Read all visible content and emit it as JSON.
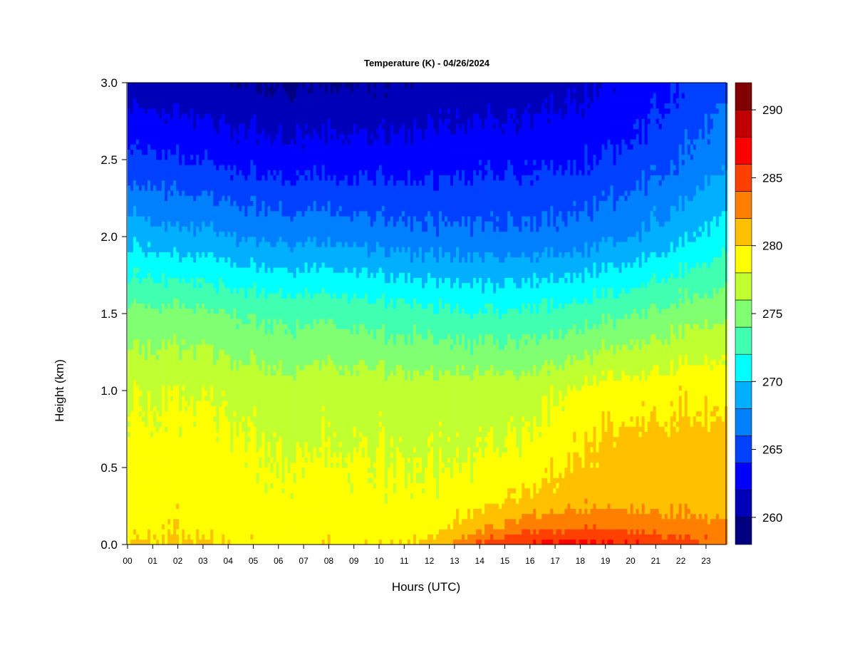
{
  "chart_data": {
    "type": "heatmap",
    "title": "Temperature (K) - 04/26/2024",
    "xlabel": "Hours (UTC)",
    "ylabel": "Height (km)",
    "x_ticks": [
      "00",
      "01",
      "02",
      "03",
      "04",
      "05",
      "06",
      "07",
      "08",
      "09",
      "10",
      "11",
      "12",
      "13",
      "14",
      "15",
      "16",
      "17",
      "18",
      "19",
      "20",
      "21",
      "22",
      "23"
    ],
    "x_range": [
      0,
      23.85
    ],
    "y_ticks": [
      "0.0",
      "0.5",
      "1.0",
      "1.5",
      "2.0",
      "2.5",
      "3.0"
    ],
    "y_range": [
      0,
      3.0
    ],
    "colorbar": {
      "range": [
        258,
        292
      ],
      "ticks": [
        "260",
        "265",
        "270",
        "275",
        "280",
        "285",
        "290"
      ],
      "levels": [
        {
          "min": 258,
          "max": 260,
          "color": "#000080"
        },
        {
          "min": 260,
          "max": 262,
          "color": "#0000b8"
        },
        {
          "min": 262,
          "max": 264,
          "color": "#0000ff"
        },
        {
          "min": 264,
          "max": 266,
          "color": "#0040ff"
        },
        {
          "min": 266,
          "max": 268,
          "color": "#0080ff"
        },
        {
          "min": 268,
          "max": 270,
          "color": "#00b0ff"
        },
        {
          "min": 270,
          "max": 272,
          "color": "#00ffff"
        },
        {
          "min": 272,
          "max": 274,
          "color": "#40ffb0"
        },
        {
          "min": 274,
          "max": 276,
          "color": "#80ff70"
        },
        {
          "min": 276,
          "max": 278,
          "color": "#c0ff30"
        },
        {
          "min": 278,
          "max": 280,
          "color": "#ffff00"
        },
        {
          "min": 280,
          "max": 282,
          "color": "#ffc000"
        },
        {
          "min": 282,
          "max": 284,
          "color": "#ff8000"
        },
        {
          "min": 284,
          "max": 286,
          "color": "#ff4000"
        },
        {
          "min": 286,
          "max": 288,
          "color": "#ff0000"
        },
        {
          "min": 288,
          "max": 290,
          "color": "#c00000"
        },
        {
          "min": 290,
          "max": 292,
          "color": "#800000"
        }
      ]
    },
    "profile_heights_km": [
      0.0,
      0.1,
      0.3,
      0.6,
      1.0,
      1.5,
      2.0,
      2.5,
      3.0
    ],
    "profiles": [
      {
        "hour": 0,
        "temps_k": [
          280.5,
          279.5,
          279.3,
          278.8,
          278.0,
          274.8,
          269.5,
          264.8,
          261.0
        ]
      },
      {
        "hour": 2,
        "temps_k": [
          280.5,
          279.6,
          279.3,
          278.8,
          277.8,
          274.5,
          268.5,
          264.0,
          260.5
        ]
      },
      {
        "hour": 4,
        "temps_k": [
          279.8,
          279.3,
          279.0,
          278.5,
          277.5,
          274.0,
          268.0,
          263.5,
          260.0
        ]
      },
      {
        "hour": 6,
        "temps_k": [
          279.5,
          279.0,
          278.5,
          278.0,
          277.0,
          273.5,
          267.5,
          263.0,
          259.8
        ]
      },
      {
        "hour": 8,
        "temps_k": [
          279.8,
          279.2,
          278.8,
          278.0,
          277.2,
          273.5,
          267.5,
          263.0,
          259.8
        ]
      },
      {
        "hour": 10,
        "temps_k": [
          279.6,
          279.2,
          278.5,
          278.0,
          277.0,
          273.0,
          267.0,
          263.0,
          260.0
        ]
      },
      {
        "hour": 12,
        "temps_k": [
          280.5,
          279.0,
          278.5,
          277.5,
          277.0,
          272.5,
          266.5,
          263.0,
          260.5
        ]
      },
      {
        "hour": 14,
        "temps_k": [
          284.5,
          281.5,
          279.0,
          277.8,
          277.0,
          272.0,
          266.5,
          263.2,
          260.5
        ]
      },
      {
        "hour": 16,
        "temps_k": [
          286.5,
          283.5,
          280.5,
          278.5,
          277.0,
          272.5,
          266.5,
          263.5,
          261.0
        ]
      },
      {
        "hour": 18,
        "temps_k": [
          286.8,
          284.0,
          281.0,
          280.2,
          278.5,
          273.0,
          267.0,
          263.8,
          261.5
        ]
      },
      {
        "hour": 20,
        "temps_k": [
          286.2,
          283.8,
          281.2,
          281.0,
          279.0,
          274.0,
          268.0,
          264.5,
          262.5
        ]
      },
      {
        "hour": 22,
        "temps_k": [
          285.0,
          283.0,
          281.0,
          280.8,
          279.5,
          275.0,
          269.5,
          266.0,
          264.0
        ]
      },
      {
        "hour": 23.85,
        "temps_k": [
          283.5,
          282.5,
          280.5,
          280.5,
          279.5,
          275.5,
          271.0,
          267.5,
          265.5
        ]
      }
    ]
  }
}
